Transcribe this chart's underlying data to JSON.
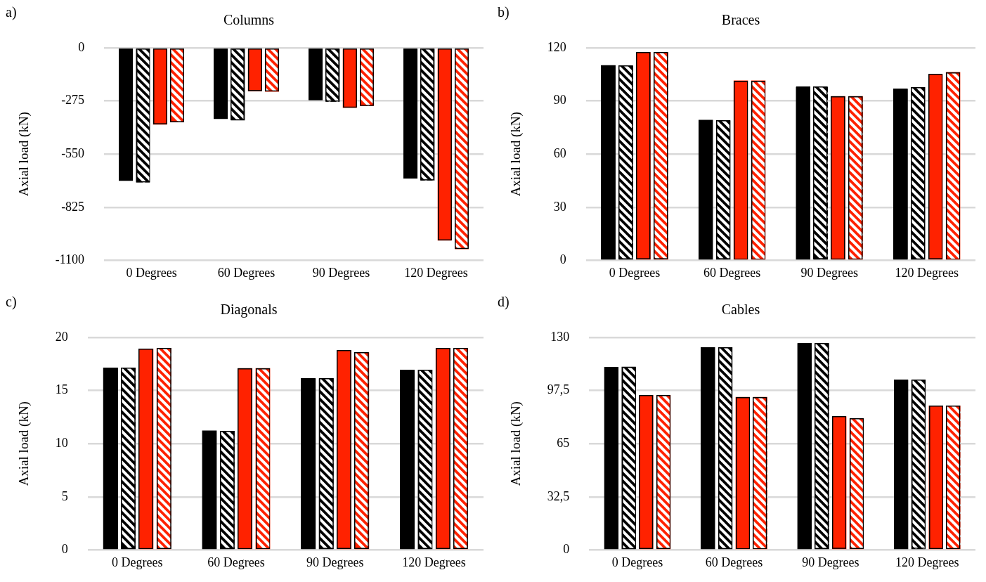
{
  "chart_data": [
    {
      "type": "bar",
      "title": "Columns",
      "ylabel": "Axial load (kN)",
      "annotations": [
        "a)"
      ],
      "categories": [
        "0 Degrees",
        "60 Degrees",
        "90 Degrees",
        "120 Degrees"
      ],
      "series": [
        {
          "color": "#000000",
          "values": [
            -688,
            -368,
            -271,
            -677
          ]
        },
        {
          "color": "#000000",
          "values": [
            -697,
            -376,
            -279,
            -687
          ]
        },
        {
          "color": "#ff2200",
          "values": [
            -397,
            -225,
            -311,
            -998
          ]
        },
        {
          "color": "#ff2200",
          "values": [
            -386,
            -227,
            -301,
            -1042
          ]
        }
      ],
      "ylim": [
        -1100,
        0
      ],
      "yticks": [
        -1100,
        -825,
        -550,
        -275,
        0
      ],
      "grid": "y",
      "legend": false
    },
    {
      "type": "bar",
      "title": "Braces",
      "ylabel": "Axial load (kN)",
      "annotations": [
        "b)"
      ],
      "categories": [
        "0 Degrees",
        "60 Degrees",
        "90 Degrees",
        "120 Degrees"
      ],
      "series": [
        {
          "color": "#000000",
          "values": [
            110.2,
            79.3,
            98,
            96.8
          ]
        },
        {
          "color": "#000000",
          "values": [
            110,
            79,
            98,
            97.8
          ]
        },
        {
          "color": "#ff2200",
          "values": [
            117.5,
            101.5,
            92.7,
            105.2
          ]
        },
        {
          "color": "#ff2200",
          "values": [
            117.5,
            101.5,
            92.7,
            106.3
          ]
        }
      ],
      "ylim": [
        0,
        120
      ],
      "yticks": [
        0,
        30,
        60,
        90,
        120
      ],
      "grid": "y",
      "legend": false
    },
    {
      "type": "bar",
      "title": "Diagonals",
      "ylabel": "Axial load (kN)",
      "annotations": [
        "c)"
      ],
      "categories": [
        "0 Degrees",
        "60 Degrees",
        "90 Degrees",
        "120 Degrees"
      ],
      "series": [
        {
          "color": "#000000",
          "values": [
            17.15,
            11.23,
            16.15,
            16.95
          ]
        },
        {
          "color": "#000000",
          "values": [
            17.15,
            11.2,
            16.15,
            16.95
          ]
        },
        {
          "color": "#ff2200",
          "values": [
            18.95,
            17.1,
            18.8,
            19
          ]
        },
        {
          "color": "#ff2200",
          "values": [
            19,
            17.1,
            18.6,
            19
          ]
        }
      ],
      "ylim": [
        0,
        20
      ],
      "yticks": [
        0,
        5,
        10,
        15,
        20
      ],
      "grid": "y",
      "legend": false
    },
    {
      "type": "bar",
      "title": "Cables",
      "ylabel": "Axial load (kN)",
      "annotations": [
        "d)"
      ],
      "categories": [
        "0 Degrees",
        "60 Degrees",
        "90 Degrees",
        "120 Degrees"
      ],
      "series": [
        {
          "color": "#000000",
          "values": [
            111.9,
            124,
            126.5,
            104.1
          ]
        },
        {
          "color": "#000000",
          "values": [
            112,
            124,
            126.5,
            104
          ]
        },
        {
          "color": "#ff2200",
          "values": [
            94.7,
            93.6,
            81.7,
            88.3
          ]
        },
        {
          "color": "#ff2200",
          "values": [
            94.7,
            93.6,
            80.5,
            88.3
          ]
        }
      ],
      "ylim": [
        0,
        130
      ],
      "yticks": [
        0,
        {
          "value": 32.5,
          "label": "32,5"
        },
        65,
        {
          "value": 97.5,
          "label": "97,5"
        },
        130
      ],
      "grid": "y",
      "legend": false
    }
  ]
}
